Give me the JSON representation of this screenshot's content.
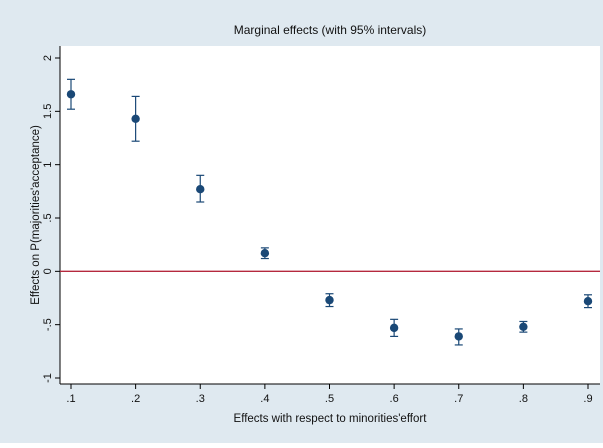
{
  "chart_data": {
    "type": "scatter",
    "title": "Marginal effects (with 95% intervals)",
    "xlabel": "Effects with respect to minorities'effort",
    "ylabel": "Effects on P(majorities'acceptance)",
    "x": [
      0.1,
      0.2,
      0.3,
      0.4,
      0.5,
      0.6,
      0.7,
      0.8,
      0.9
    ],
    "series": [
      {
        "values": [
          1.66,
          1.43,
          0.77,
          0.17,
          -0.27,
          -0.53,
          -0.61,
          -0.52,
          -0.28
        ],
        "ci_low": [
          1.52,
          1.22,
          0.65,
          0.12,
          -0.33,
          -0.61,
          -0.69,
          -0.57,
          -0.34
        ],
        "ci_high": [
          1.8,
          1.64,
          0.9,
          0.22,
          -0.21,
          -0.45,
          -0.54,
          -0.47,
          -0.22
        ]
      }
    ],
    "xticks": [
      0.1,
      0.2,
      0.3,
      0.4,
      0.5,
      0.6,
      0.7,
      0.8,
      0.9
    ],
    "xtick_labels": [
      ".1",
      ".2",
      ".3",
      ".4",
      ".5",
      ".6",
      ".7",
      ".8",
      ".9"
    ],
    "yticks": [
      -1,
      -0.5,
      0,
      0.5,
      1,
      1.5,
      2
    ],
    "ytick_labels": [
      "-1",
      "-.5",
      "0",
      ".5",
      "1",
      "1.5",
      "2"
    ],
    "xlim": [
      0.1,
      0.9
    ],
    "ylim": [
      -1,
      2
    ],
    "reference_line": 0,
    "grid": false,
    "legend": "none",
    "colors": {
      "outer_background": "#dfe9f0",
      "plot_background": "#ffffff",
      "marker": "#1a4876",
      "errorbar": "#1a4876",
      "reference_line": "#b5293e",
      "axis": "#000000"
    }
  }
}
